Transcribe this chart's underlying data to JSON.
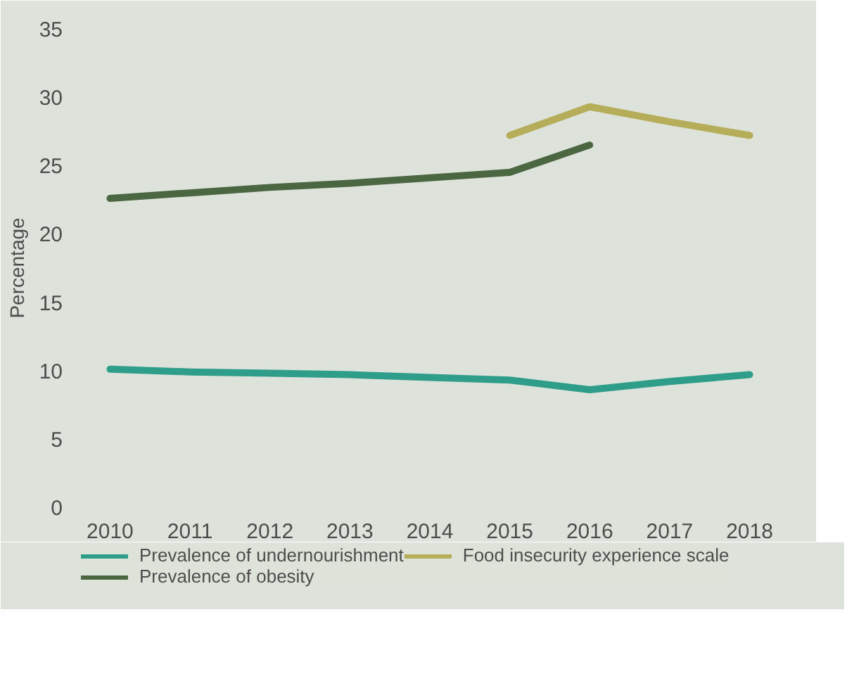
{
  "chart_data": {
    "type": "line",
    "ylabel": "Percentage",
    "x": [
      2010,
      2011,
      2012,
      2013,
      2014,
      2015,
      2016,
      2017,
      2018
    ],
    "xlim": [
      2009.6,
      2018.4
    ],
    "xticks": [
      2010,
      2011,
      2012,
      2013,
      2014,
      2015,
      2016,
      2017,
      2018
    ],
    "ylim": [
      0,
      35
    ],
    "yticks": [
      0,
      5,
      10,
      15,
      20,
      25,
      30,
      35
    ],
    "grid": false,
    "legend": "bottom",
    "series": [
      {
        "name": "Prevalence of undernourishment",
        "color": "#2e9e8a",
        "values": [
          10.1,
          9.9,
          9.8,
          9.7,
          9.5,
          9.3,
          8.6,
          9.2,
          9.7
        ]
      },
      {
        "name": "Prevalence of obesity",
        "color": "#4a6741",
        "values": [
          22.6,
          23.0,
          23.4,
          23.7,
          24.1,
          24.5,
          26.5,
          null,
          null
        ]
      },
      {
        "name": "Food insecurity experience scale",
        "color": "#b5ad5a",
        "values": [
          null,
          null,
          null,
          null,
          null,
          27.2,
          29.3,
          28.2,
          27.2
        ]
      }
    ]
  }
}
